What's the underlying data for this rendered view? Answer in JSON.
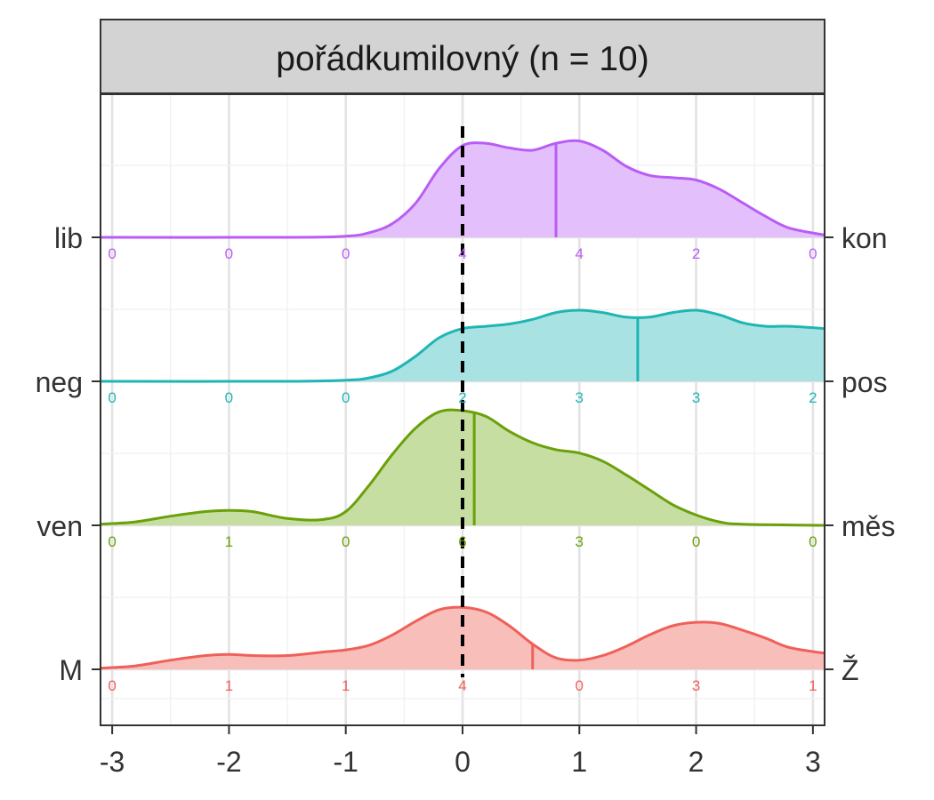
{
  "chart_data": {
    "type": "ridgeline",
    "title": "pořádkumilovný (n = 10)",
    "xlabel": "",
    "ylabel": "",
    "xlim": [
      -3.1,
      3.1
    ],
    "x_ticks": [
      -3,
      -2,
      -1,
      0,
      1,
      2,
      3
    ],
    "x_tick_labels": [
      "-3",
      "-2",
      "-1",
      "0",
      "1",
      "2",
      "3"
    ],
    "reference_line_x": 0,
    "grid": true,
    "count_positions": [
      -3,
      -2,
      -1,
      0,
      1,
      2,
      3
    ],
    "series": [
      {
        "left_label": "lib",
        "right_label": "kon",
        "color": "#b95df5",
        "fill": "#e2bdfc",
        "mean": 0.8,
        "counts": [
          "0",
          "0",
          "0",
          "4",
          "4",
          "2",
          "0"
        ],
        "density_x": [
          -3.1,
          -1.5,
          -1,
          -0.8,
          -0.6,
          -0.4,
          -0.2,
          0,
          0.2,
          0.4,
          0.6,
          0.8,
          1,
          1.2,
          1.4,
          1.6,
          1.8,
          2,
          2.2,
          2.4,
          2.6,
          2.8,
          3.1
        ],
        "density_y": [
          0,
          0,
          0.01,
          0.04,
          0.12,
          0.3,
          0.6,
          0.8,
          0.82,
          0.78,
          0.76,
          0.82,
          0.84,
          0.76,
          0.62,
          0.54,
          0.52,
          0.5,
          0.42,
          0.3,
          0.18,
          0.08,
          0.02
        ]
      },
      {
        "left_label": "neg",
        "right_label": "pos",
        "color": "#20b5b5",
        "fill": "#a4e0e0",
        "mean": 1.5,
        "counts": [
          "0",
          "0",
          "0",
          "2",
          "3",
          "3",
          "2"
        ],
        "density_x": [
          -3.1,
          -1.5,
          -1,
          -0.8,
          -0.6,
          -0.4,
          -0.2,
          0,
          0.2,
          0.4,
          0.6,
          0.8,
          1,
          1.2,
          1.4,
          1.6,
          1.8,
          2,
          2.2,
          2.4,
          2.6,
          2.8,
          3.1
        ],
        "density_y": [
          0,
          0,
          0.01,
          0.03,
          0.09,
          0.22,
          0.38,
          0.46,
          0.48,
          0.5,
          0.54,
          0.6,
          0.62,
          0.6,
          0.56,
          0.56,
          0.6,
          0.62,
          0.58,
          0.51,
          0.48,
          0.48,
          0.46
        ]
      },
      {
        "left_label": "ven",
        "right_label": "měs",
        "color": "#6aa00a",
        "fill": "#c4dc9e",
        "mean": 0.1,
        "counts": [
          "0",
          "1",
          "0",
          "6",
          "3",
          "0",
          "0"
        ],
        "density_x": [
          -3.1,
          -2.8,
          -2.5,
          -2.2,
          -2,
          -1.8,
          -1.5,
          -1.2,
          -1,
          -0.8,
          -0.6,
          -0.4,
          -0.2,
          0,
          0.2,
          0.4,
          0.6,
          0.8,
          1,
          1.2,
          1.4,
          1.6,
          1.8,
          2,
          2.2,
          2.4,
          3.1
        ],
        "density_y": [
          0.01,
          0.03,
          0.08,
          0.12,
          0.13,
          0.12,
          0.06,
          0.05,
          0.12,
          0.35,
          0.62,
          0.85,
          0.99,
          1.0,
          0.95,
          0.82,
          0.72,
          0.66,
          0.63,
          0.56,
          0.44,
          0.31,
          0.18,
          0.09,
          0.03,
          0.01,
          0
        ]
      },
      {
        "left_label": "M",
        "right_label": "Ž",
        "color": "#f0605a",
        "fill": "#f8bab6",
        "mean": 0.6,
        "counts": [
          "0",
          "1",
          "1",
          "4",
          "0",
          "3",
          "1"
        ],
        "density_x": [
          -3.1,
          -2.8,
          -2.5,
          -2.2,
          -2,
          -1.8,
          -1.5,
          -1.2,
          -1,
          -0.8,
          -0.6,
          -0.4,
          -0.2,
          0,
          0.2,
          0.4,
          0.6,
          0.8,
          1,
          1.2,
          1.4,
          1.6,
          1.8,
          2,
          2.2,
          2.4,
          2.6,
          2.8,
          3.1
        ],
        "density_y": [
          0.01,
          0.03,
          0.08,
          0.12,
          0.13,
          0.12,
          0.12,
          0.15,
          0.17,
          0.21,
          0.3,
          0.42,
          0.52,
          0.54,
          0.5,
          0.38,
          0.22,
          0.1,
          0.08,
          0.12,
          0.2,
          0.3,
          0.38,
          0.41,
          0.4,
          0.34,
          0.27,
          0.19,
          0.14
        ]
      }
    ]
  }
}
